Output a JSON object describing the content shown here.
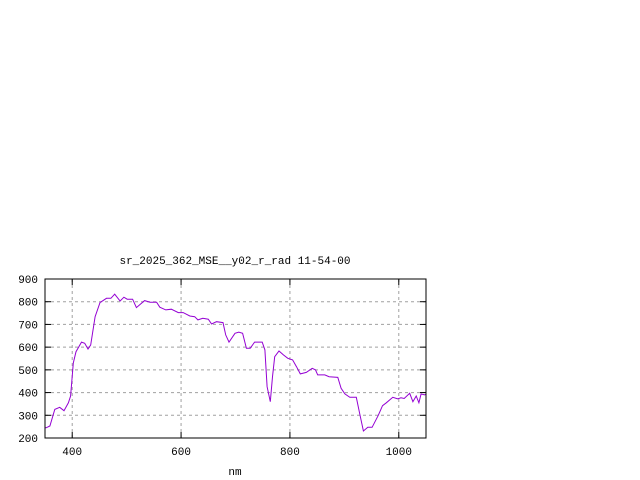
{
  "chart_data": {
    "type": "line",
    "title": "sr_2025_362_MSE__y02_r_rad 11-54-00",
    "xlabel": "nm",
    "ylabel": "",
    "xlim": [
      350,
      1050
    ],
    "ylim": [
      200,
      900
    ],
    "xticks": [
      400,
      600,
      800,
      1000
    ],
    "yticks": [
      200,
      300,
      400,
      500,
      600,
      700,
      800,
      900
    ],
    "grid": true,
    "legend": "none",
    "line_color": "#9400d3",
    "series": [
      {
        "x": [
          350,
          352,
          359,
          368,
          377,
          385,
          393,
          397,
          402,
          407,
          417,
          423,
          429,
          434,
          442,
          451,
          463,
          471,
          478,
          488,
          495,
          501,
          511,
          518,
          533,
          543,
          555,
          561,
          572,
          582,
          595,
          604,
          616,
          625,
          631,
          640,
          650,
          656,
          665,
          677,
          682,
          688,
          699,
          706,
          713,
          720,
          727,
          735,
          749,
          754,
          758,
          764,
          768,
          772,
          780,
          788,
          796,
          805,
          812,
          819,
          830,
          841,
          847,
          851,
          864,
          872,
          888,
          894,
          901,
          910,
          922,
          928,
          935,
          943,
          951,
          962,
          970,
          977,
          989,
          998,
          1004,
          1010,
          1020,
          1026,
          1032,
          1037,
          1041,
          1047,
          1050
        ],
        "y": [
          245,
          245,
          253,
          326,
          335,
          320,
          355,
          385,
          530,
          580,
          622,
          617,
          592,
          610,
          734,
          796,
          815,
          815,
          833,
          803,
          820,
          811,
          811,
          774,
          805,
          798,
          798,
          776,
          764,
          767,
          752,
          752,
          737,
          734,
          720,
          727,
          723,
          702,
          712,
          708,
          654,
          622,
          661,
          666,
          661,
          595,
          595,
          622,
          622,
          588,
          426,
          360,
          470,
          558,
          583,
          566,
          551,
          544,
          514,
          482,
          489,
          507,
          500,
          478,
          478,
          470,
          467,
          419,
          394,
          379,
          379,
          309,
          231,
          247,
          247,
          298,
          342,
          355,
          379,
          372,
          377,
          374,
          397,
          360,
          385,
          355,
          394,
          390,
          392
        ]
      }
    ]
  }
}
